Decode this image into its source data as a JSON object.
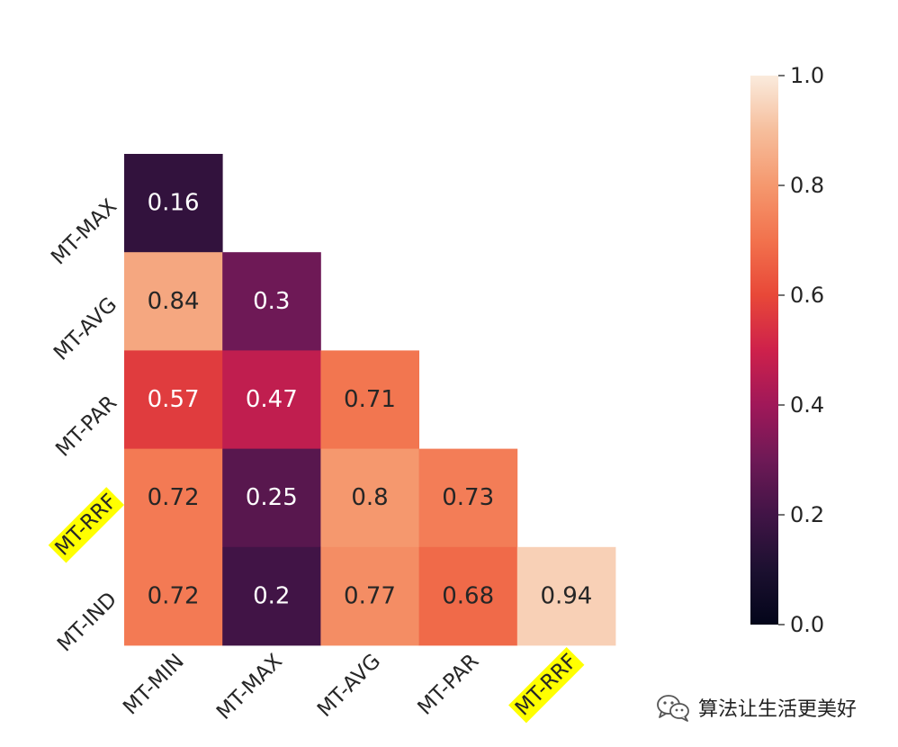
{
  "chart_data": {
    "type": "heatmap",
    "mask": "lower-triangle",
    "row_labels": [
      "MT-MAX",
      "MT-AVG",
      "MT-PAR",
      "MT-RRF",
      "MT-IND"
    ],
    "col_labels": [
      "MT-MIN",
      "MT-MAX",
      "MT-AVG",
      "MT-PAR",
      "MT-RRF"
    ],
    "values": [
      [
        0.16,
        null,
        null,
        null,
        null
      ],
      [
        0.84,
        0.3,
        null,
        null,
        null
      ],
      [
        0.57,
        0.47,
        0.71,
        null,
        null
      ],
      [
        0.72,
        0.25,
        0.8,
        0.73,
        null
      ],
      [
        0.72,
        0.2,
        0.77,
        0.68,
        0.94
      ]
    ],
    "value_labels": [
      [
        "0.16",
        "",
        "",
        "",
        ""
      ],
      [
        "0.84",
        "0.3",
        "",
        "",
        ""
      ],
      [
        "0.57",
        "0.47",
        "0.71",
        "",
        ""
      ],
      [
        "0.72",
        "0.25",
        "0.8",
        "0.73",
        ""
      ],
      [
        "0.72",
        "0.2",
        "0.77",
        "0.68",
        "0.94"
      ]
    ],
    "highlighted_labels": [
      "MT-RRF"
    ],
    "highlight_color": "#ffff00",
    "colormap": "rocket",
    "vmin": 0.0,
    "vmax": 1.0,
    "colorbar": {
      "ticks": [
        0.0,
        0.2,
        0.4,
        0.6,
        0.8,
        1.0
      ],
      "tick_labels": [
        "0.0",
        "0.2",
        "0.4",
        "0.6",
        "0.8",
        "1.0"
      ]
    },
    "title": "",
    "xlabel": "",
    "ylabel": ""
  },
  "watermark": {
    "text": "算法让生活更美好",
    "icon": "wechat-icon"
  }
}
